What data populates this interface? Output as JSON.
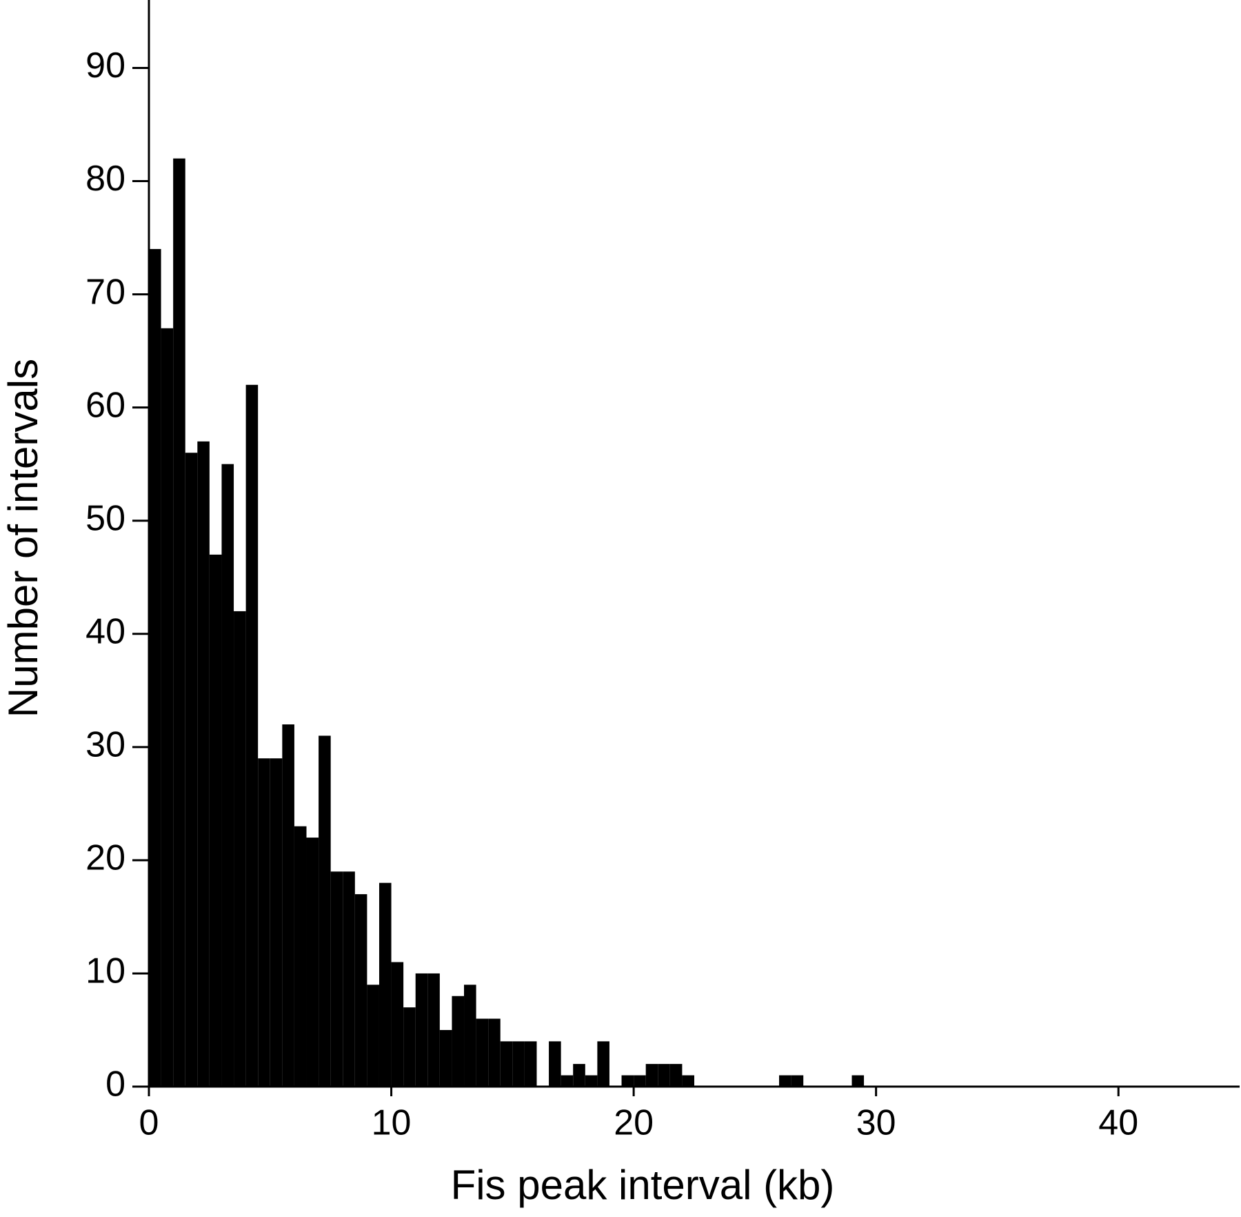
{
  "chart_data": {
    "type": "histogram",
    "xlabel": "Fis peak interval (kb)",
    "ylabel": "Number of intervals",
    "bins": [
      0,
      0.5,
      1,
      1.5,
      2,
      2.5,
      3,
      3.5,
      4,
      4.5,
      5,
      5.5,
      6,
      6.5,
      7,
      7.5,
      8,
      8.5,
      9,
      9.5,
      10,
      10.5,
      11,
      11.5,
      12,
      12.5,
      13,
      13.5,
      14,
      14.5,
      15,
      15.5,
      16,
      16.5,
      17,
      17.5,
      18,
      18.5,
      19,
      19.5,
      20,
      20.5,
      21,
      21.5,
      22,
      22.5,
      23,
      23.5,
      24,
      24.5,
      25,
      25.5,
      26,
      26.5,
      27,
      27.5,
      28,
      28.5,
      29,
      29.5,
      30
    ],
    "values": [
      74,
      67,
      82,
      56,
      57,
      47,
      55,
      42,
      62,
      29,
      29,
      32,
      23,
      22,
      31,
      19,
      19,
      17,
      9,
      18,
      11,
      7,
      10,
      10,
      5,
      8,
      9,
      6,
      6,
      4,
      4,
      4,
      0,
      4,
      1,
      2,
      1,
      4,
      0,
      1,
      1,
      2,
      2,
      2,
      1,
      0,
      0,
      0,
      0,
      0,
      0,
      0,
      1,
      1,
      0,
      0,
      0,
      0,
      1,
      0
    ],
    "color": "#000000",
    "xlim": [
      0,
      45
    ],
    "ylim": [
      0,
      96
    ],
    "xticks": [
      0,
      10,
      20,
      30,
      40
    ],
    "yticks": [
      0,
      10,
      20,
      30,
      40,
      50,
      60,
      70,
      80,
      90
    ]
  }
}
